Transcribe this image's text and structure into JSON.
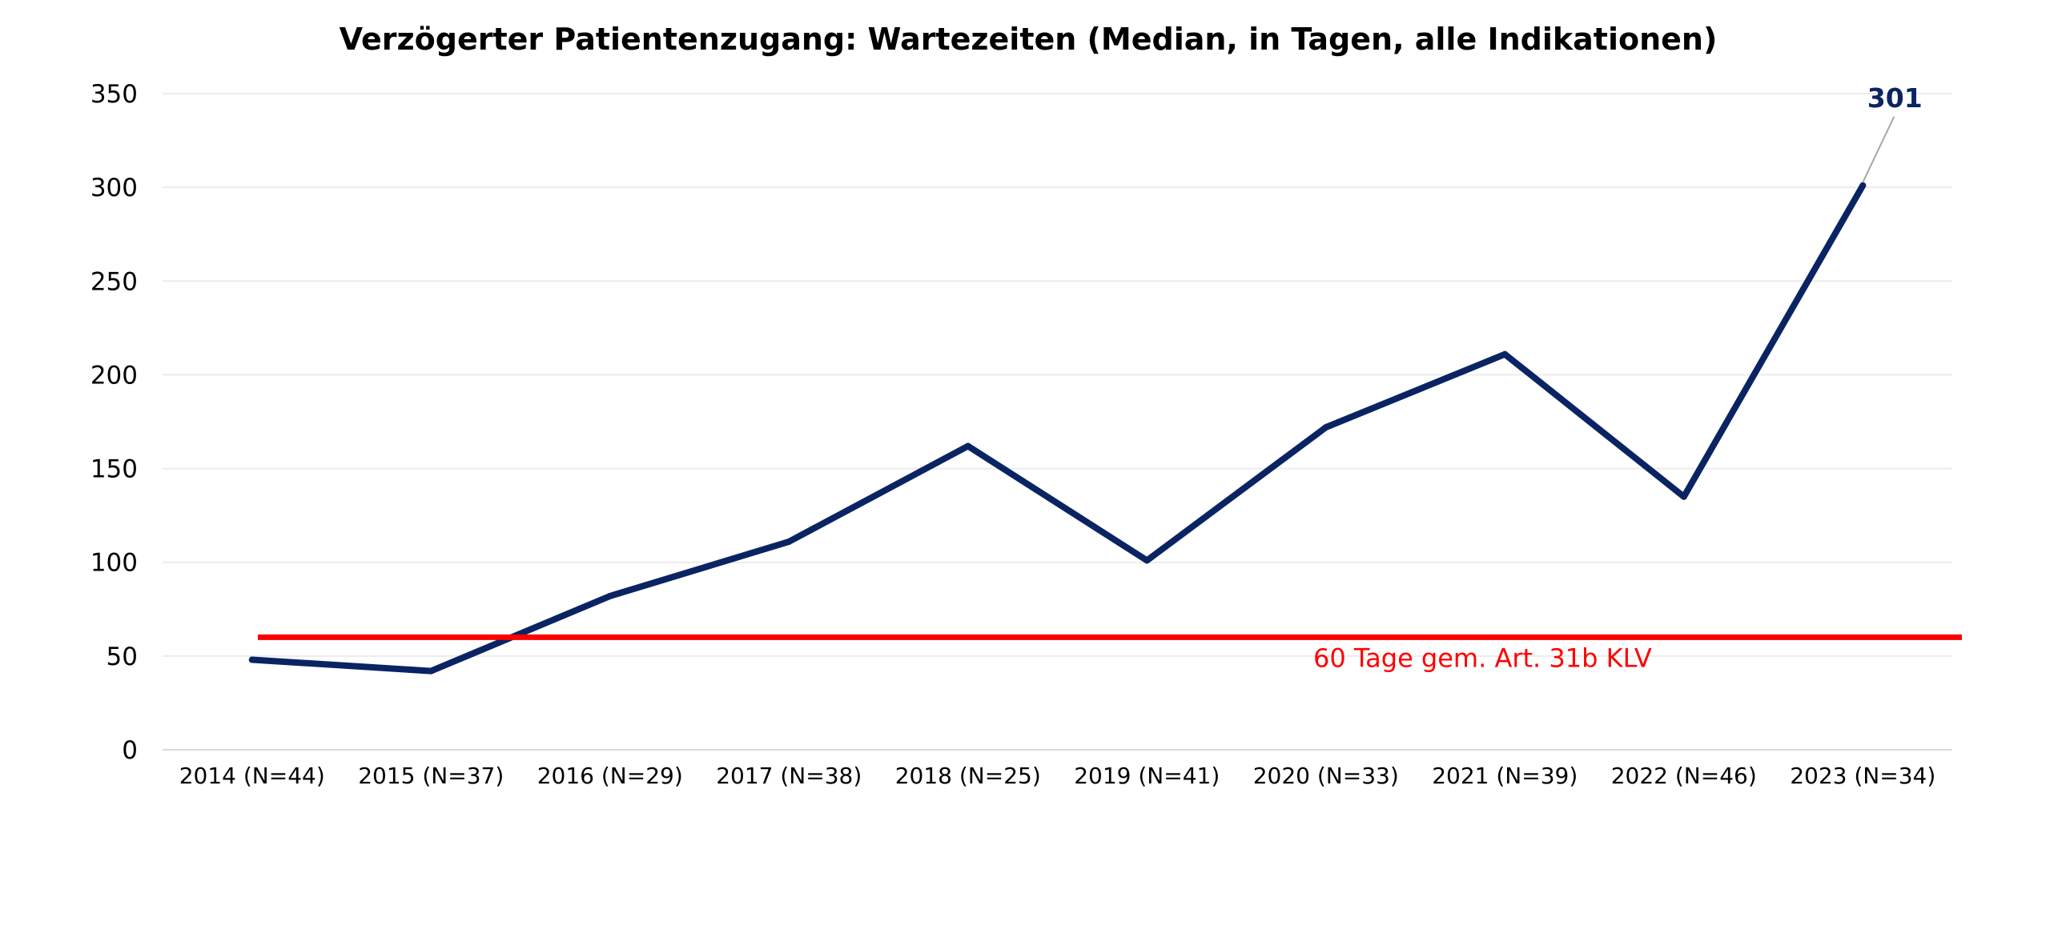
{
  "chart_data": {
    "type": "line",
    "title": "Verzögerter Patientenzugang: Wartezeiten (Median, in Tagen, alle Indikationen)",
    "xlabel": "",
    "ylabel": "",
    "categories": [
      "2014 (N=44)",
      "2015 (N=37)",
      "2016 (N=29)",
      "2017 (N=38)",
      "2018 (N=25)",
      "2019 (N=41)",
      "2020 (N=33)",
      "2021 (N=39)",
      "2022 (N=46)",
      "2023 (N=34)"
    ],
    "series": [
      {
        "values": [
          48,
          42,
          82,
          111,
          162,
          101,
          172,
          211,
          135,
          301
        ],
        "color": "#0a2463"
      }
    ],
    "ylim": [
      0,
      350
    ],
    "yticks": [
      0,
      50,
      100,
      150,
      200,
      250,
      300,
      350
    ],
    "grid": true,
    "legend": "none",
    "reference_line": {
      "value": 60,
      "label": "60 Tage gem. Art. 31b KLV",
      "color": "#ff0000"
    },
    "annotations": [
      {
        "category_index": 9,
        "text": "301",
        "color": "#0a2463"
      }
    ]
  }
}
